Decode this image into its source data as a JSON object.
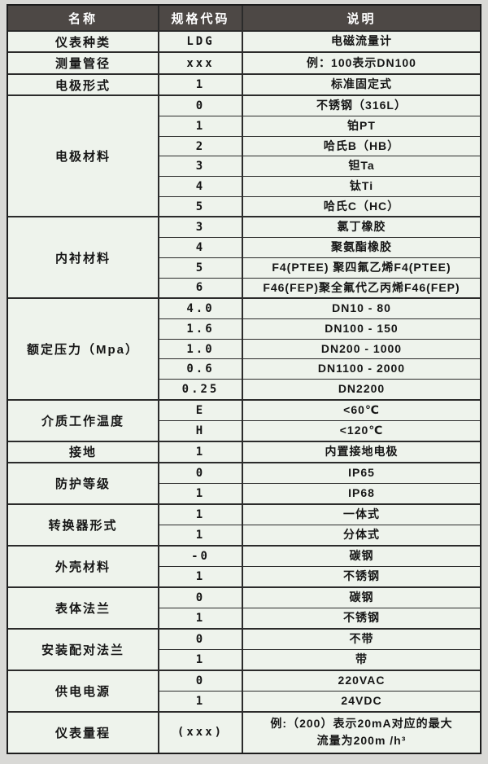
{
  "colors": {
    "page_bg": "#d9d9d6",
    "header_bg": "#4d4845",
    "header_text": "#ffffff",
    "cell_bg": "#eef3ec",
    "border_dark": "#1c1c1c",
    "border_line": "#2b2b2b",
    "text_color": "#161616"
  },
  "table": {
    "header": {
      "name": "名称",
      "code": "规格代码",
      "desc": "说明"
    },
    "groups": [
      {
        "name": "仪表种类",
        "rows": [
          {
            "code": "LDG",
            "desc": "电磁流量计"
          }
        ]
      },
      {
        "name": "测量管径",
        "rows": [
          {
            "code": "xxx",
            "desc": "例：100表示DN100"
          }
        ]
      },
      {
        "name": "电极形式",
        "rows": [
          {
            "code": "1",
            "desc": "标准固定式"
          }
        ]
      },
      {
        "name": "电极材料",
        "rows": [
          {
            "code": "0",
            "desc": "不锈钢（316L）"
          },
          {
            "code": "1",
            "desc": "铂PT"
          },
          {
            "code": "2",
            "desc": "哈氏B（HB）"
          },
          {
            "code": "3",
            "desc": "钽Ta"
          },
          {
            "code": "4",
            "desc": "钛Ti"
          },
          {
            "code": "5",
            "desc": "哈氏C（HC）"
          }
        ]
      },
      {
        "name": "内衬材料",
        "rows": [
          {
            "code": "3",
            "desc": "氯丁橡胶"
          },
          {
            "code": "4",
            "desc": "聚氨酯橡胶"
          },
          {
            "code": "5",
            "desc": "F4(PTEE) 聚四氟乙烯F4(PTEE)"
          },
          {
            "code": "6",
            "desc": "F46(FEP)聚全氟代乙丙烯F46(FEP)"
          }
        ]
      },
      {
        "name": "额定压力（Mpa）",
        "rows": [
          {
            "code": "4.0",
            "desc": "DN10 - 80"
          },
          {
            "code": "1.6",
            "desc": "DN100 - 150"
          },
          {
            "code": "1.0",
            "desc": "DN200 - 1000"
          },
          {
            "code": "0.6",
            "desc": "DN1100 - 2000"
          },
          {
            "code": "0.25",
            "desc": "DN2200"
          }
        ]
      },
      {
        "name": "介质工作温度",
        "rows": [
          {
            "code": "E",
            "desc": "<60℃"
          },
          {
            "code": "H",
            "desc": "<120℃"
          }
        ]
      },
      {
        "name": "接地",
        "rows": [
          {
            "code": "1",
            "desc": "内置接地电极"
          }
        ]
      },
      {
        "name": "防护等级",
        "rows": [
          {
            "code": "0",
            "desc": "IP65"
          },
          {
            "code": "1",
            "desc": "IP68"
          }
        ]
      },
      {
        "name": "转换器形式",
        "rows": [
          {
            "code": "1",
            "desc": "一体式"
          },
          {
            "code": "1",
            "desc": "分体式"
          }
        ]
      },
      {
        "name": "外壳材料",
        "rows": [
          {
            "code": "-0",
            "desc": "碳钢"
          },
          {
            "code": "1",
            "desc": "不锈钢"
          }
        ]
      },
      {
        "name": "表体法兰",
        "rows": [
          {
            "code": "0",
            "desc": "碳钢"
          },
          {
            "code": "1",
            "desc": "不锈钢"
          }
        ]
      },
      {
        "name": "安装配对法兰",
        "rows": [
          {
            "code": "0",
            "desc": "不带"
          },
          {
            "code": "1",
            "desc": "带"
          }
        ]
      },
      {
        "name": "供电电源",
        "rows": [
          {
            "code": "0",
            "desc": "220VAC"
          },
          {
            "code": "1",
            "desc": "24VDC"
          }
        ]
      },
      {
        "name": "仪表量程",
        "rows": [
          {
            "code": "(xxx)",
            "desc": "例:（200）表示20mA对应的最大\n流量为200m /h³",
            "tall": true
          }
        ]
      }
    ]
  }
}
